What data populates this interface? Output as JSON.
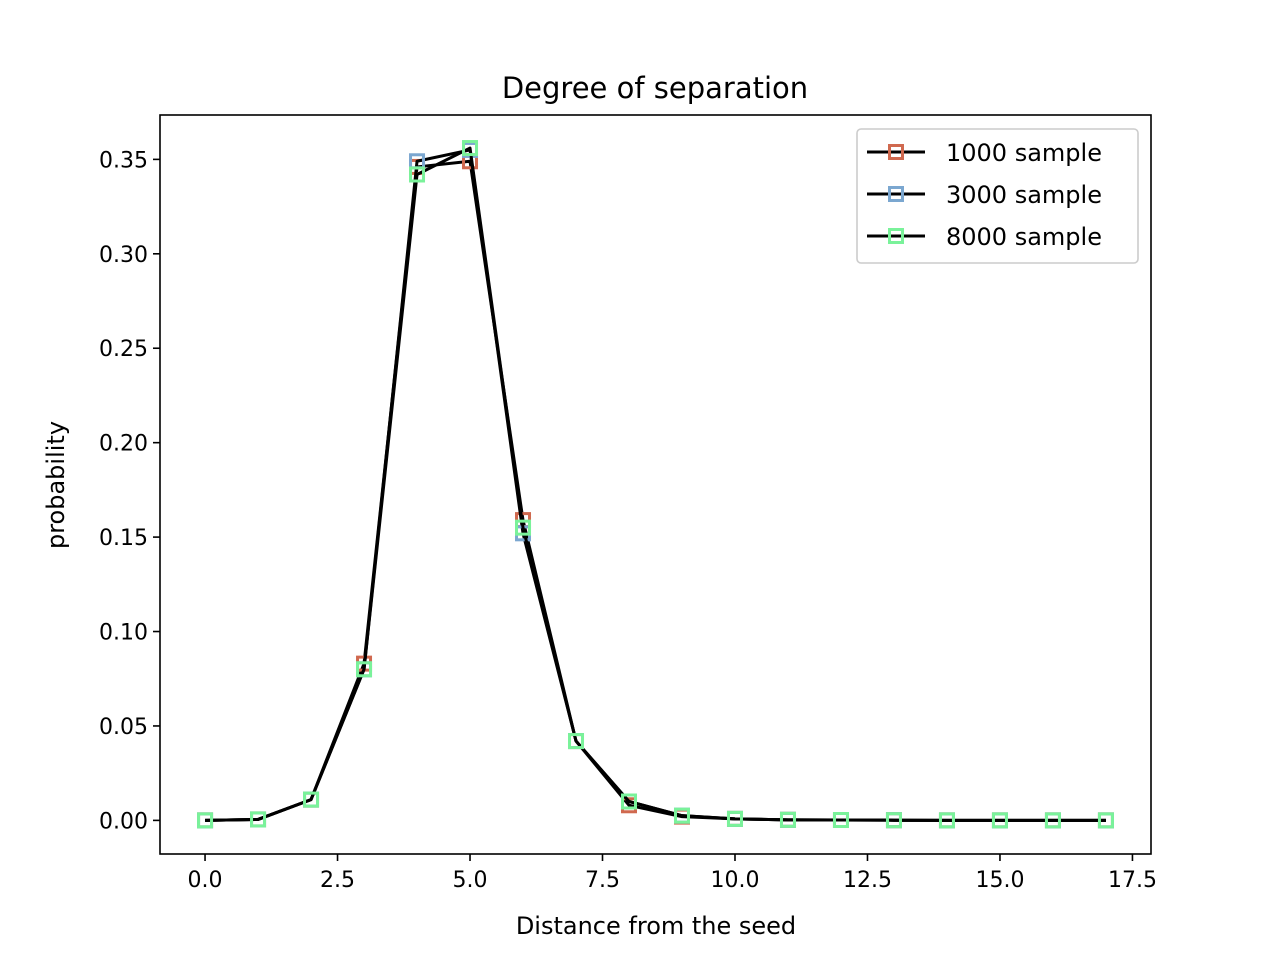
{
  "chart_data": {
    "type": "line",
    "title": "Degree of separation",
    "xlabel": "Distance from the seed",
    "ylabel": "probability",
    "xlim": [
      -0.85,
      17.85
    ],
    "ylim": [
      -0.0178,
      0.3735
    ],
    "x_ticks": [
      0.0,
      2.5,
      5.0,
      7.5,
      10.0,
      12.5,
      15.0,
      17.5
    ],
    "x_tick_labels": [
      "0.0",
      "2.5",
      "5.0",
      "7.5",
      "10.0",
      "12.5",
      "15.0",
      "17.5"
    ],
    "y_ticks": [
      0.0,
      0.05,
      0.1,
      0.15,
      0.2,
      0.25,
      0.3,
      0.35
    ],
    "y_tick_labels": [
      "0.00",
      "0.05",
      "0.10",
      "0.15",
      "0.20",
      "0.25",
      "0.30",
      "0.35"
    ],
    "grid": false,
    "legend_position": "top-right",
    "line_color": "#000000",
    "x": [
      0,
      1,
      2,
      3,
      4,
      5,
      6,
      7,
      8,
      9,
      10,
      11,
      12,
      13,
      14,
      15,
      16,
      17
    ],
    "series": [
      {
        "name": "1000 sample",
        "marker_color": "#d0694f",
        "values": [
          0.0,
          0.0005,
          0.011,
          0.083,
          0.346,
          0.349,
          0.159,
          0.042,
          0.008,
          0.002,
          0.0008,
          0.0003,
          0.0002,
          0.0001,
          0.0,
          0.0,
          0.0,
          0.0
        ]
      },
      {
        "name": "3000 sample",
        "marker_color": "#7ba7d0",
        "values": [
          0.0,
          0.0005,
          0.011,
          0.08,
          0.349,
          0.355,
          0.152,
          0.042,
          0.01,
          0.0025,
          0.0008,
          0.0003,
          0.0002,
          0.0001,
          0.0,
          0.0,
          0.0,
          0.0
        ]
      },
      {
        "name": "8000 sample",
        "marker_color": "#7af29a",
        "values": [
          0.0,
          0.0005,
          0.011,
          0.08,
          0.342,
          0.356,
          0.155,
          0.042,
          0.01,
          0.0025,
          0.0008,
          0.0003,
          0.0002,
          0.0001,
          0.0,
          0.0,
          0.0,
          0.0
        ]
      }
    ]
  }
}
